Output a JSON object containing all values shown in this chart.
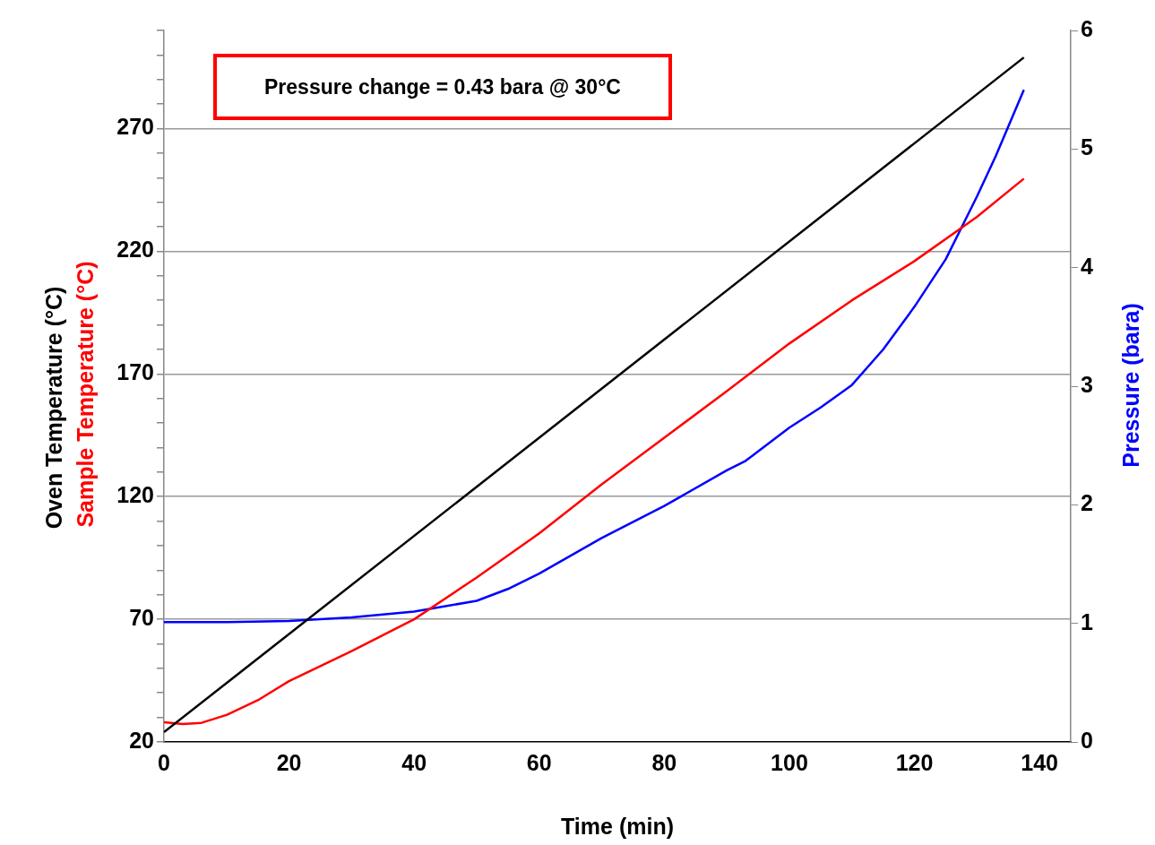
{
  "chart_data": {
    "type": "line",
    "xlabel": "Time (min)",
    "y2label": "Pressure (bara)",
    "annotations": [
      "Pressure change = 0.43 bara @ 30°C"
    ],
    "xlim": [
      0,
      145
    ],
    "xticks": [
      0,
      20,
      40,
      60,
      80,
      100,
      120,
      140
    ],
    "ylim": [
      20,
      310
    ],
    "yticks": [
      20,
      {
        "value": 30,
        "label": null
      },
      {
        "value": 40,
        "label": null
      },
      {
        "value": 50,
        "label": null
      },
      {
        "value": 60,
        "label": null
      },
      70,
      {
        "value": 80,
        "label": null
      },
      {
        "value": 90,
        "label": null
      },
      {
        "value": 100,
        "label": null
      },
      {
        "value": 110,
        "label": null
      },
      120,
      {
        "value": 130,
        "label": null
      },
      {
        "value": 140,
        "label": null
      },
      {
        "value": 150,
        "label": null
      },
      {
        "value": 160,
        "label": null
      },
      170,
      {
        "value": 180,
        "label": null
      },
      {
        "value": 190,
        "label": null
      },
      {
        "value": 200,
        "label": null
      },
      {
        "value": 210,
        "label": null
      },
      220,
      {
        "value": 230,
        "label": null
      },
      {
        "value": 240,
        "label": null
      },
      {
        "value": 250,
        "label": null
      },
      {
        "value": 260,
        "label": null
      },
      270,
      {
        "value": 280,
        "label": null
      },
      {
        "value": 290,
        "label": null
      },
      {
        "value": 300,
        "label": null
      },
      {
        "value": 310,
        "label": null
      }
    ],
    "y2lim": [
      0,
      6
    ],
    "y2ticks": [
      0,
      1,
      2,
      3,
      4,
      5,
      6
    ],
    "grid": "y",
    "legend": false,
    "marker": "none",
    "line_style": "solid",
    "series": [
      {
        "name": "Oven Temperature (°C)",
        "color": "#000000",
        "x": [
          0,
          137.5
        ],
        "values": [
          24,
          299
        ]
      },
      {
        "name": "Sample Temperature (°C)",
        "color": "#ff0000",
        "x": [
          0,
          3,
          6,
          10,
          15,
          20,
          30,
          40,
          50,
          60,
          70,
          80,
          90,
          100,
          110,
          120,
          130,
          137.5
        ],
        "values": [
          28,
          27.3,
          27.8,
          31,
          37,
          44.8,
          57,
          70,
          87,
          105,
          125,
          144,
          163,
          182.4,
          200,
          216,
          234,
          249.6
        ]
      },
      {
        "color": "#0000ff",
        "axis": "y2",
        "x": [
          0,
          10,
          20,
          30,
          40,
          50,
          55,
          60,
          70,
          80,
          90,
          93,
          95,
          100,
          105,
          110,
          115,
          120,
          125,
          130,
          133,
          137.5
        ],
        "values": [
          1.01,
          1.01,
          1.02,
          1.05,
          1.1,
          1.19,
          1.29,
          1.42,
          1.72,
          1.99,
          2.29,
          2.37,
          2.45,
          2.65,
          2.82,
          3.01,
          3.31,
          3.67,
          4.07,
          4.6,
          4.94,
          5.5
        ]
      }
    ]
  }
}
